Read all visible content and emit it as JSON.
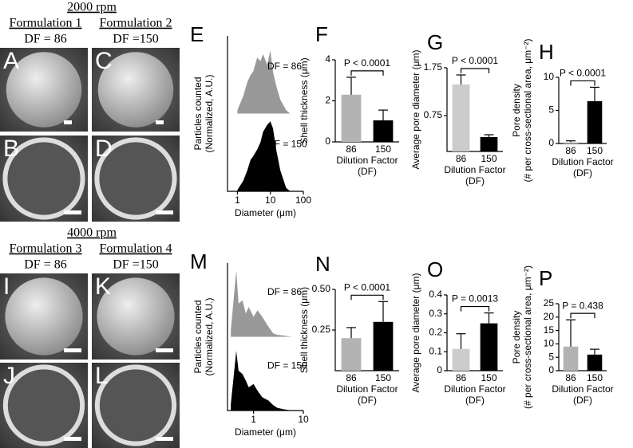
{
  "figure": {
    "top": {
      "heading": "2000 rpm",
      "columns": [
        {
          "title": "Formulation 1",
          "sub": "DF = 86"
        },
        {
          "title": "Formulation 2",
          "sub": "DF =150"
        }
      ],
      "panels": [
        "A",
        "C",
        "B",
        "D"
      ]
    },
    "bottom": {
      "heading": "4000 rpm",
      "columns": [
        {
          "title": "Formulation 3",
          "sub": "DF = 86"
        },
        {
          "title": "Formulation 4",
          "sub": "DF =150"
        }
      ],
      "panels": [
        "I",
        "K",
        "J",
        "L"
      ]
    }
  },
  "chart_data": [
    {
      "type": "area",
      "panel": "E",
      "ylabel": [
        "Particles counted",
        "(Normalized, A.U.)"
      ],
      "xlabel": "Diameter (μm)",
      "log_x": true,
      "xlim": [
        0.5,
        100
      ],
      "xticks": [
        1,
        10,
        100
      ],
      "ylim": [
        0,
        1
      ],
      "x": [
        1,
        1.5,
        2,
        2.5,
        3,
        4,
        5,
        6,
        8,
        10,
        12,
        15,
        20,
        30,
        40
      ],
      "series": [
        {
          "name": "DF = 86",
          "color": "#999999",
          "values": [
            0.05,
            0.25,
            0.45,
            0.55,
            0.6,
            0.8,
            0.75,
            0.85,
            0.7,
            0.9,
            0.6,
            0.4,
            0.2,
            0.05,
            0.0
          ]
        },
        {
          "name": "DF = 150",
          "color": "#000000",
          "values": [
            0.02,
            0.15,
            0.3,
            0.45,
            0.5,
            0.6,
            0.7,
            0.85,
            0.95,
            1.0,
            0.9,
            0.6,
            0.3,
            0.05,
            0.0
          ]
        }
      ]
    },
    {
      "type": "bar",
      "panel": "F",
      "ylabel": [
        "Shell thickness (μm)"
      ],
      "xlabel": [
        "Dilution Factor",
        "(DF)"
      ],
      "categories": [
        "86",
        "150"
      ],
      "values": [
        2.3,
        1.05
      ],
      "errors": [
        0.85,
        0.5
      ],
      "colors": [
        "#b3b3b3",
        "#000000"
      ],
      "ylim": [
        0,
        4
      ],
      "yticks": [
        0,
        2,
        4
      ],
      "annotation": "P < 0.0001"
    },
    {
      "type": "bar",
      "panel": "G",
      "ylabel": [
        "Average pore diameter (μm)"
      ],
      "xlabel": [
        "Dilution Factor",
        "(DF)"
      ],
      "categories": [
        "86",
        "150"
      ],
      "values": [
        1.4,
        0.3
      ],
      "errors": [
        0.2,
        0.05
      ],
      "colors": [
        "#cccccc",
        "#000000"
      ],
      "ylim": [
        0,
        1.75
      ],
      "yticks": [
        0.75,
        1.75
      ],
      "annotation": "P < 0.0001"
    },
    {
      "type": "bar",
      "panel": "H",
      "ylabel": [
        "Pore density",
        "(# per cross-sectional area, μm⁻²)"
      ],
      "xlabel": [
        "Dilution Factor",
        "(DF)"
      ],
      "categories": [
        "86",
        "150"
      ],
      "values": [
        0.2,
        6.4
      ],
      "errors": [
        0.2,
        2.1
      ],
      "colors": [
        "#cccccc",
        "#000000"
      ],
      "ylim": [
        0,
        10
      ],
      "yticks": [
        0,
        5,
        10
      ],
      "annotation": "P < 0.0001"
    },
    {
      "type": "area",
      "panel": "M",
      "ylabel": [
        "Particles counted",
        "(Normalized, A.U.)"
      ],
      "xlabel": "Diameter (μm)",
      "log_x": true,
      "xlim": [
        0.3,
        10
      ],
      "xticks": [
        1,
        10
      ],
      "ylim": [
        0,
        1
      ],
      "x": [
        0.35,
        0.45,
        0.5,
        0.6,
        0.7,
        0.8,
        1,
        1.2,
        1.5,
        2,
        2.5,
        3,
        4,
        6
      ],
      "series": [
        {
          "name": "DF = 86",
          "color": "#999999",
          "values": [
            0.1,
            1.0,
            0.5,
            0.55,
            0.35,
            0.45,
            0.3,
            0.4,
            0.3,
            0.15,
            0.05,
            0.03,
            0.02,
            0.0
          ]
        },
        {
          "name": "DF = 150",
          "color": "#000000",
          "values": [
            0.1,
            0.9,
            0.6,
            0.55,
            0.45,
            0.35,
            0.4,
            0.3,
            0.2,
            0.15,
            0.08,
            0.04,
            0.02,
            0.0
          ]
        }
      ]
    },
    {
      "type": "bar",
      "panel": "N",
      "ylabel": [
        "Shell thickness (μm)"
      ],
      "xlabel": [
        "Dilution Factor",
        "(DF)"
      ],
      "categories": [
        "86",
        "150"
      ],
      "values": [
        0.2,
        0.3
      ],
      "errors": [
        0.065,
        0.125
      ],
      "colors": [
        "#b3b3b3",
        "#000000"
      ],
      "ylim": [
        0,
        0.5
      ],
      "yticks": [
        0.25,
        {
          "value": 0.5,
          "label": "0.50"
        }
      ],
      "annotation": "P < 0.0001"
    },
    {
      "type": "bar",
      "panel": "O",
      "ylabel": [
        "Average pore diameter (μm)"
      ],
      "xlabel": [
        "Dilution Factor",
        "(DF)"
      ],
      "categories": [
        "86",
        "150"
      ],
      "values": [
        0.115,
        0.25
      ],
      "errors": [
        0.08,
        0.055
      ],
      "colors": [
        "#cccccc",
        "#000000"
      ],
      "ylim": [
        0,
        0.4
      ],
      "yticks": [
        0,
        0.1,
        0.2,
        0.3,
        0.4
      ],
      "annotation": "P = 0.0013"
    },
    {
      "type": "bar",
      "panel": "P",
      "ylabel": [
        "Pore density",
        "(# per cross-sectional area, μm⁻²)"
      ],
      "xlabel": [
        "Dilution Factor",
        "(DF)"
      ],
      "categories": [
        "86",
        "150"
      ],
      "values": [
        9,
        6
      ],
      "errors": [
        10,
        2
      ],
      "colors": [
        "#b3b3b3",
        "#000000"
      ],
      "ylim": [
        0,
        25
      ],
      "yticks": [
        0,
        5,
        10,
        15,
        20,
        25
      ],
      "annotation": "P = 0.438"
    }
  ]
}
